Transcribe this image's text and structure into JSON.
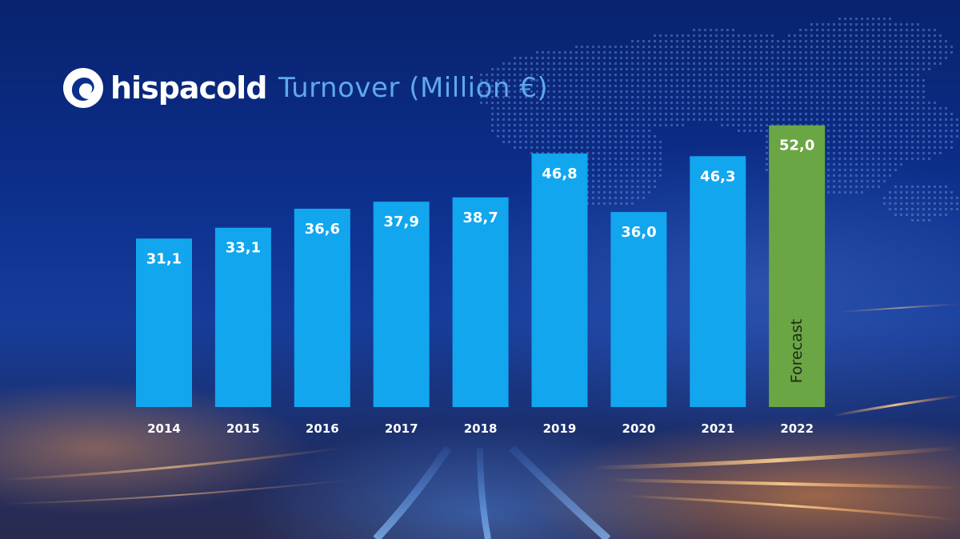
{
  "brand": {
    "name": "hispacold"
  },
  "title": "Turnover (Million €)",
  "colors": {
    "actual_bar": "#12a6ef",
    "forecast_bar": "#6aa644",
    "title": "#5fa8ec"
  },
  "chart_data": {
    "type": "bar",
    "title": "Turnover (Million €)",
    "categories": [
      "2014",
      "2015",
      "2016",
      "2017",
      "2018",
      "2019",
      "2020",
      "2021",
      "2022"
    ],
    "values": [
      31.1,
      33.1,
      36.6,
      37.9,
      38.7,
      46.8,
      36.0,
      46.3,
      52.0
    ],
    "value_labels": [
      "31,1",
      "33,1",
      "36,6",
      "37,9",
      "38,7",
      "46,8",
      "36,0",
      "46,3",
      "52,0"
    ],
    "forecast": {
      "category": "2022",
      "label": "Forecast"
    },
    "xlabel": "",
    "ylabel": "",
    "ylim": [
      0,
      58
    ],
    "grid": false,
    "legend": "none"
  }
}
